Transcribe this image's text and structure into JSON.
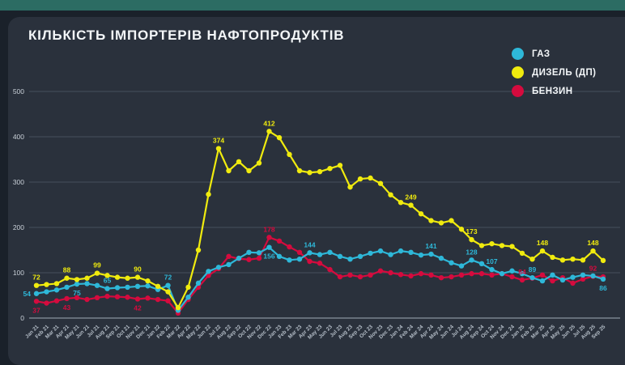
{
  "header": {
    "title": "КІЛЬКІСТЬ ІМПОРТЕРІВ НАФТОПРОДУКТІВ"
  },
  "legend": [
    {
      "label": "ГАЗ",
      "color": "#2eb8d9"
    },
    {
      "label": "ДИЗЕЛЬ (ДП)",
      "color": "#f0eb0e"
    },
    {
      "label": "БЕНЗИН",
      "color": "#d50b3e"
    }
  ],
  "chart_data": {
    "type": "line",
    "title": "КІЛЬКІСТЬ ІМПОРТЕРІВ НАФТОПРОДУКТІВ",
    "xlabel": "",
    "ylabel": "",
    "ylim": [
      0,
      500
    ],
    "yticks": [
      0,
      100,
      200,
      300,
      400,
      500
    ],
    "grid": true,
    "legend_position": "top-right",
    "x": [
      "Jan 21",
      "Feb 21",
      "Mar 21",
      "Apr 21",
      "May 21",
      "Jun 21",
      "Jul 21",
      "Aug 21",
      "Sep 21",
      "Oct 21",
      "Nov 21",
      "Dec 21",
      "Jan 22",
      "Feb 22",
      "Mar 22",
      "Apr 22",
      "May 22",
      "Jun 22",
      "Jul 22",
      "Aug 22",
      "Sep 22",
      "Oct 22",
      "Nov 22",
      "Dec 22",
      "Jan 23",
      "Feb 23",
      "Mar 23",
      "Apr 23",
      "May 23",
      "Jun 23",
      "Jul 23",
      "Aug 23",
      "Sep 23",
      "Oct 23",
      "Nov 23",
      "Dec 23",
      "Jan 24",
      "Feb 24",
      "Mar 24",
      "Apr 24",
      "May 24",
      "Jun 24",
      "Jul 24",
      "Aug 24",
      "Sep 24",
      "Oct 24",
      "Nov 24",
      "Dec 24",
      "Jan 25",
      "Feb 25",
      "Mar 25",
      "Apr 25",
      "May 25",
      "Jun 25",
      "Jul 25",
      "Aug 25",
      "Sep 25"
    ],
    "series": [
      {
        "name": "БЕНЗИН",
        "color": "#d50b3e",
        "values": [
          37,
          33,
          38,
          43,
          45,
          41,
          45,
          48,
          47,
          46,
          42,
          44,
          41,
          38,
          11,
          41,
          68,
          94,
          109,
          136,
          131,
          129,
          132,
          178,
          170,
          157,
          145,
          125,
          121,
          107,
          91,
          95,
          91,
          95,
          104,
          100,
          96,
          93,
          98,
          95,
          89,
          91,
          95,
          98,
          98,
          95,
          98,
          91,
          84,
          88,
          95,
          82,
          89,
          77,
          86,
          92,
          91
        ]
      },
      {
        "name": "ГАЗ",
        "color": "#2eb8d9",
        "values": [
          54,
          58,
          62,
          68,
          75,
          76,
          72,
          65,
          67,
          68,
          70,
          71,
          63,
          72,
          17,
          46,
          77,
          103,
          112,
          118,
          132,
          145,
          144,
          156,
          136,
          128,
          130,
          144,
          140,
          145,
          136,
          130,
          136,
          143,
          148,
          140,
          148,
          145,
          139,
          141,
          132,
          122,
          115,
          128,
          120,
          107,
          98,
          104,
          98,
          89,
          82,
          95,
          84,
          90,
          95,
          93,
          86
        ]
      },
      {
        "name": "ДИЗЕЛЬ (ДП)",
        "color": "#f0eb0e",
        "values": [
          72,
          74,
          76,
          88,
          85,
          88,
          99,
          94,
          90,
          88,
          90,
          82,
          70,
          58,
          23,
          68,
          150,
          273,
          374,
          325,
          345,
          325,
          342,
          412,
          398,
          361,
          325,
          321,
          323,
          330,
          337,
          289,
          307,
          309,
          297,
          272,
          255,
          249,
          230,
          215,
          210,
          215,
          196,
          173,
          160,
          164,
          160,
          158,
          143,
          130,
          148,
          134,
          128,
          130,
          128,
          148,
          127
        ]
      }
    ],
    "annotations": [
      {
        "series": "ДИЗЕЛЬ (ДП)",
        "x": "Jan 21",
        "value": 72,
        "pos": "above"
      },
      {
        "series": "ДИЗЕЛЬ (ДП)",
        "x": "Apr 21",
        "value": 88,
        "pos": "above"
      },
      {
        "series": "ДИЗЕЛЬ (ДП)",
        "x": "Jul 21",
        "value": 99,
        "pos": "above"
      },
      {
        "series": "ДИЗЕЛЬ (ДП)",
        "x": "Nov 21",
        "value": 90,
        "pos": "above"
      },
      {
        "series": "ДИЗЕЛЬ (ДП)",
        "x": "Jul 22",
        "value": 374,
        "pos": "above"
      },
      {
        "series": "ДИЗЕЛЬ (ДП)",
        "x": "Dec 22",
        "value": 412,
        "pos": "above"
      },
      {
        "series": "ДИЗЕЛЬ (ДП)",
        "x": "Feb 24",
        "value": 249,
        "pos": "above"
      },
      {
        "series": "ДИЗЕЛЬ (ДП)",
        "x": "Aug 24",
        "value": 173,
        "pos": "above"
      },
      {
        "series": "ДИЗЕЛЬ (ДП)",
        "x": "Mar 25",
        "value": 148,
        "pos": "above"
      },
      {
        "series": "ДИЗЕЛЬ (ДП)",
        "x": "Aug 25",
        "value": 148,
        "pos": "above"
      },
      {
        "series": "ГАЗ",
        "x": "Jan 21",
        "value": 54,
        "pos": "left"
      },
      {
        "series": "ГАЗ",
        "x": "May 21",
        "value": 75,
        "pos": "below"
      },
      {
        "series": "ГАЗ",
        "x": "Aug 21",
        "value": 65,
        "pos": "above"
      },
      {
        "series": "ГАЗ",
        "x": "Feb 22",
        "value": 72,
        "pos": "above"
      },
      {
        "series": "ГАЗ",
        "x": "Dec 22",
        "value": 156,
        "pos": "below"
      },
      {
        "series": "ГАЗ",
        "x": "Apr 23",
        "value": 144,
        "pos": "above"
      },
      {
        "series": "ГАЗ",
        "x": "Apr 24",
        "value": 141,
        "pos": "above"
      },
      {
        "series": "ГАЗ",
        "x": "Aug 24",
        "value": 128,
        "pos": "above"
      },
      {
        "series": "ГАЗ",
        "x": "Oct 24",
        "value": 107,
        "pos": "above"
      },
      {
        "series": "ГАЗ",
        "x": "Feb 25",
        "value": 89,
        "pos": "above"
      },
      {
        "series": "ГАЗ",
        "x": "Sep 25",
        "value": 86,
        "pos": "below"
      },
      {
        "series": "БЕНЗИН",
        "x": "Jan 21",
        "value": 37,
        "pos": "below"
      },
      {
        "series": "БЕНЗИН",
        "x": "Apr 21",
        "value": 43,
        "pos": "below"
      },
      {
        "series": "БЕНЗИН",
        "x": "Nov 21",
        "value": 42,
        "pos": "below"
      },
      {
        "series": "БЕНЗИН",
        "x": "Dec 22",
        "value": 178,
        "pos": "above"
      },
      {
        "series": "БЕНЗИН",
        "x": "Jan 25",
        "value": 84,
        "pos": "above"
      },
      {
        "series": "БЕНЗИН",
        "x": "Aug 25",
        "value": 92,
        "pos": "above"
      }
    ]
  }
}
